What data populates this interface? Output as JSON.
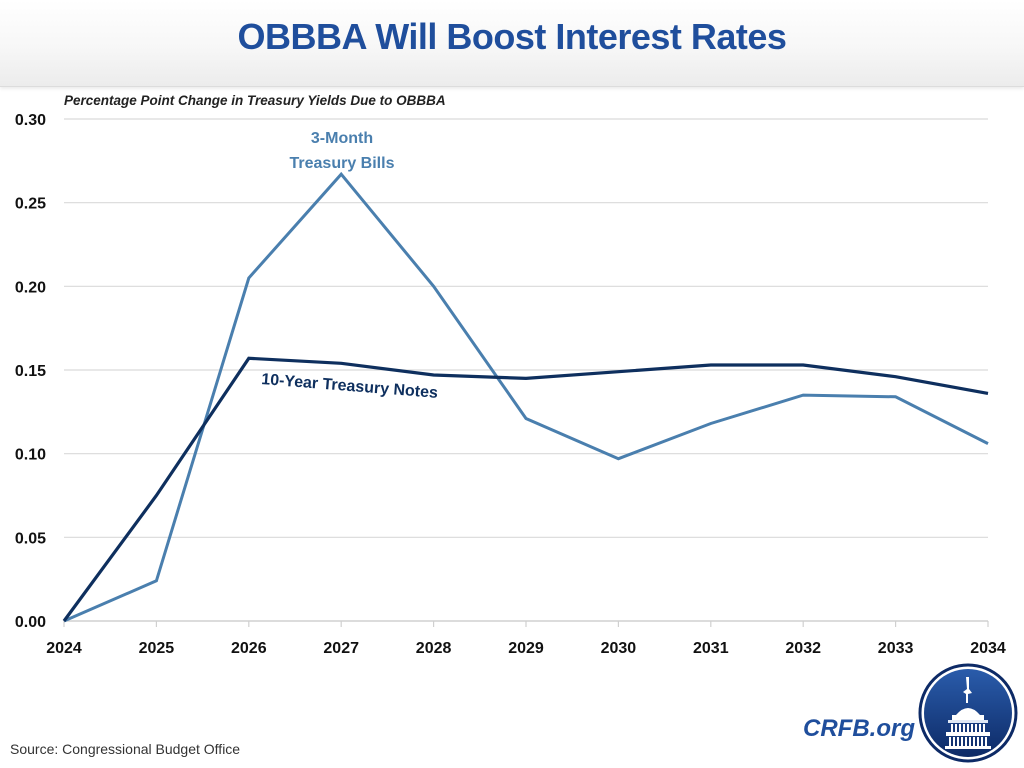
{
  "header": {
    "title": "OBBBA Will Boost Interest Rates"
  },
  "footer": {
    "source": "Source: Congressional Budget Office",
    "brand": "CRFB.org",
    "logo_icon": "capitol-dome-seal-icon"
  },
  "colors": {
    "title": "#1f4e9c",
    "three_month_line": "#4a7fae",
    "ten_year_line": "#0e2f5e",
    "gridline": "#d9d9d9"
  },
  "chart_data": {
    "type": "line",
    "title": "OBBBA Will Boost Interest Rates",
    "subtitle": "Percentage Point Change in Treasury Yields Due to OBBBA",
    "xlabel": "",
    "ylabel": "",
    "x": [
      "2024",
      "2025",
      "2026",
      "2027",
      "2028",
      "2029",
      "2030",
      "2031",
      "2032",
      "2033",
      "2034"
    ],
    "ylim": [
      0,
      0.3
    ],
    "yticks": [
      "0.00",
      "0.05",
      "0.10",
      "0.15",
      "0.20",
      "0.25",
      "0.30"
    ],
    "grid": true,
    "legend": "inline-labels",
    "series": [
      {
        "name": "3-Month Treasury Bills",
        "label_lines": [
          "3-Month",
          "Treasury Bills"
        ],
        "values": [
          0.0,
          0.024,
          0.205,
          0.267,
          0.2,
          0.121,
          0.097,
          0.118,
          0.135,
          0.134,
          0.106
        ]
      },
      {
        "name": "10-Year Treasury Notes",
        "label_lines": [
          "10-Year Treasury Notes"
        ],
        "values": [
          0.0,
          0.075,
          0.157,
          0.154,
          0.147,
          0.145,
          0.149,
          0.153,
          0.153,
          0.146,
          0.136
        ]
      }
    ]
  }
}
